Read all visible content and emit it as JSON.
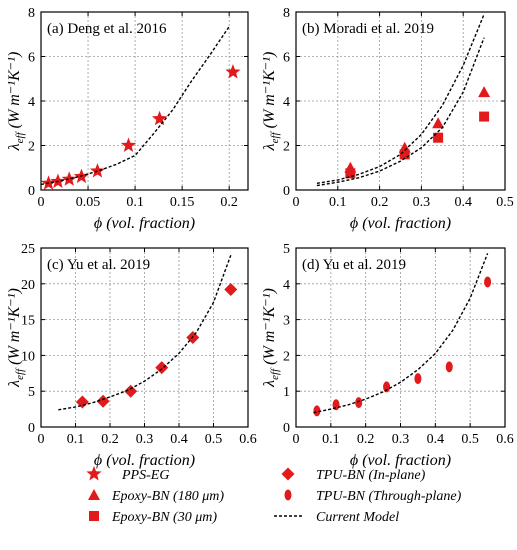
{
  "colors": {
    "marker": "#e31a1c",
    "model": "#000000",
    "grid": "#9a9a9a"
  },
  "xlabel": "ϕ (vol. fraction)",
  "ylabel": "λ",
  "ylabel_sub": "eff",
  "ylabel_unit": " (W m⁻¹K⁻¹)",
  "legend": {
    "pps_eg": "PPS-EG",
    "epoxy_bn_180": "Epoxy-BN (180 μm)",
    "epoxy_bn_30": "Epoxy-BN (30 μm)",
    "tpu_bn_inplane": "TPU-BN (In-plane)",
    "tpu_bn_through": "TPU-BN (Through-plane)",
    "current_model": "Current Model"
  },
  "chart_data": [
    {
      "type": "scatter",
      "title": "(a) Deng et al. 2016",
      "xlabel": "ϕ (vol. fraction)",
      "ylabel": "λeff (W m⁻¹K⁻¹)",
      "xlim": [
        0,
        0.22
      ],
      "ylim": [
        0,
        8
      ],
      "xticks": [
        "0",
        "0.05",
        "0.1",
        "0.15",
        "0.2"
      ],
      "yticks": [
        "0",
        "2",
        "4",
        "6",
        "8"
      ],
      "grid": true,
      "series": [
        {
          "name": "PPS-EG",
          "marker": "star",
          "x": [
            0.008,
            0.018,
            0.03,
            0.043,
            0.06,
            0.093,
            0.126,
            0.204
          ],
          "y": [
            0.3,
            0.38,
            0.48,
            0.6,
            0.85,
            2.0,
            3.2,
            5.3
          ]
        },
        {
          "name": "Current Model",
          "kind": "line",
          "x": [
            0.0,
            0.02,
            0.04,
            0.06,
            0.08,
            0.1,
            0.12,
            0.14,
            0.16,
            0.18,
            0.2
          ],
          "y": [
            0.25,
            0.4,
            0.6,
            0.85,
            1.15,
            1.55,
            2.55,
            3.6,
            4.9,
            6.1,
            7.35
          ]
        }
      ]
    },
    {
      "type": "scatter",
      "title": "(b) Moradi et al. 2019",
      "xlabel": "ϕ (vol. fraction)",
      "ylabel": "λeff (W m⁻¹K⁻¹)",
      "xlim": [
        0,
        0.5
      ],
      "ylim": [
        0,
        8
      ],
      "xticks": [
        "0",
        "0.1",
        "0.2",
        "0.3",
        "0.4",
        "0.5"
      ],
      "yticks": [
        "0",
        "2",
        "4",
        "6",
        "8"
      ],
      "grid": true,
      "series": [
        {
          "name": "Epoxy-BN (180 μm)",
          "marker": "triangle",
          "x": [
            0.13,
            0.26,
            0.34,
            0.45
          ],
          "y": [
            1.0,
            1.9,
            3.0,
            4.4
          ]
        },
        {
          "name": "Epoxy-BN (30 μm)",
          "marker": "square",
          "x": [
            0.13,
            0.26,
            0.34,
            0.45
          ],
          "y": [
            0.75,
            1.6,
            2.35,
            3.3
          ]
        },
        {
          "name": "Current Model",
          "kind": "line",
          "x": [
            0.05,
            0.1,
            0.15,
            0.2,
            0.25,
            0.3,
            0.35,
            0.4,
            0.45
          ],
          "y": [
            0.3,
            0.45,
            0.7,
            1.05,
            1.6,
            2.5,
            3.8,
            5.6,
            7.9
          ]
        },
        {
          "name": "Current Model",
          "kind": "line",
          "x": [
            0.05,
            0.1,
            0.15,
            0.2,
            0.25,
            0.3,
            0.35,
            0.4,
            0.45
          ],
          "y": [
            0.2,
            0.35,
            0.55,
            0.85,
            1.3,
            1.9,
            2.8,
            4.4,
            6.85
          ]
        }
      ]
    },
    {
      "type": "scatter",
      "title": "(c) Yu et al. 2019",
      "xlabel": "ϕ (vol. fraction)",
      "ylabel": "λeff (W m⁻¹K⁻¹)",
      "xlim": [
        0,
        0.6
      ],
      "ylim": [
        0,
        25
      ],
      "xticks": [
        "0",
        "0.1",
        "0.2",
        "0.3",
        "0.4",
        "0.5",
        "0.6"
      ],
      "yticks": [
        "0",
        "5",
        "10",
        "15",
        "20",
        "25"
      ],
      "grid": true,
      "series": [
        {
          "name": "TPU-BN (In-plane)",
          "marker": "diamond",
          "x": [
            0.12,
            0.18,
            0.26,
            0.35,
            0.44,
            0.55
          ],
          "y": [
            3.5,
            3.6,
            5.0,
            8.3,
            12.5,
            19.2
          ]
        },
        {
          "name": "Current Model",
          "kind": "line",
          "x": [
            0.05,
            0.1,
            0.15,
            0.2,
            0.25,
            0.3,
            0.35,
            0.4,
            0.45,
            0.5,
            0.55
          ],
          "y": [
            2.4,
            2.8,
            3.4,
            4.2,
            5.1,
            6.4,
            8.1,
            10.3,
            13.2,
            17.4,
            24.0
          ]
        }
      ]
    },
    {
      "type": "scatter",
      "title": "(d) Yu et al. 2019",
      "xlabel": "ϕ (vol. fraction)",
      "ylabel": "λeff (W m⁻¹K⁻¹)",
      "xlim": [
        0,
        0.6
      ],
      "ylim": [
        0,
        5
      ],
      "xticks": [
        "0",
        "0.1",
        "0.2",
        "0.3",
        "0.4",
        "0.5",
        "0.6"
      ],
      "yticks": [
        "0",
        "1",
        "2",
        "3",
        "4",
        "5"
      ],
      "grid": true,
      "series": [
        {
          "name": "TPU-BN (Through-plane)",
          "marker": "ellipse",
          "x": [
            0.06,
            0.115,
            0.18,
            0.26,
            0.35,
            0.44,
            0.55
          ],
          "y": [
            0.45,
            0.62,
            0.68,
            1.12,
            1.35,
            1.68,
            4.05
          ]
        },
        {
          "name": "Current Model",
          "kind": "line",
          "x": [
            0.05,
            0.1,
            0.15,
            0.2,
            0.25,
            0.3,
            0.35,
            0.4,
            0.45,
            0.5,
            0.55
          ],
          "y": [
            0.4,
            0.5,
            0.62,
            0.78,
            0.98,
            1.25,
            1.6,
            2.05,
            2.7,
            3.6,
            4.85
          ]
        }
      ]
    }
  ]
}
